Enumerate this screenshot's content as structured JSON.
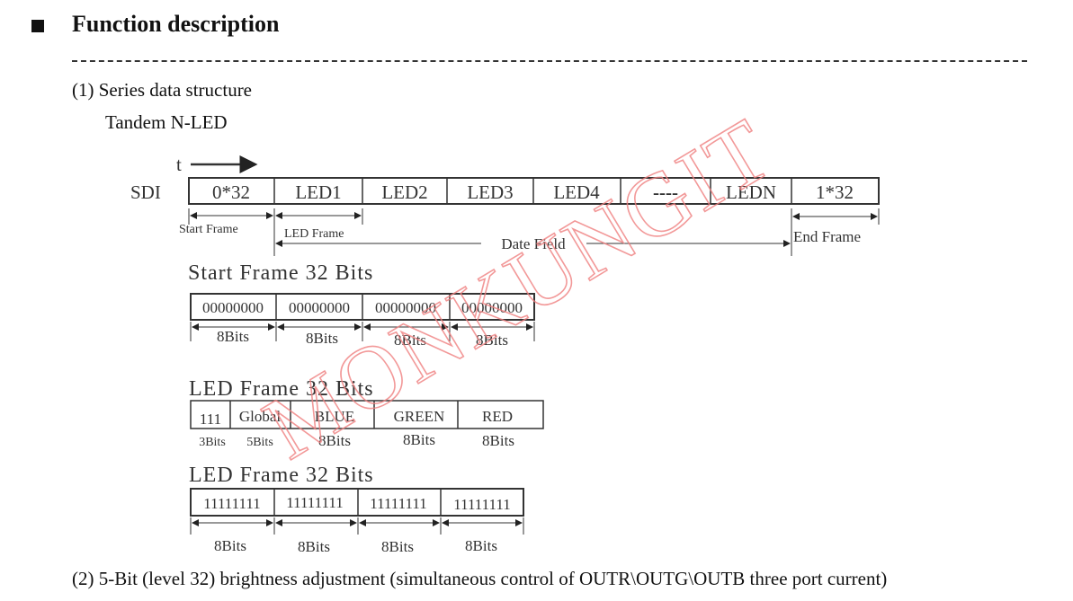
{
  "header": {
    "bullet_icon": "black-square-icon",
    "title": "Function description"
  },
  "section1": {
    "title": "(1) Series data structure",
    "subtitle": "Tandem N-LED"
  },
  "diagram": {
    "time_label": "t",
    "signal_label": "SDI",
    "sdi_cells": [
      "0*32",
      "LED1",
      "LED2",
      "LED3",
      "LED4",
      "----",
      "LEDN",
      "1*32"
    ],
    "start_frame_label": "Start Frame",
    "led_frame_label": "LED Frame",
    "date_field_label": "Date Field",
    "end_frame_label": "End Frame",
    "start_frame": {
      "title": "Start Frame 32 Bits",
      "cells": [
        "00000000",
        "00000000",
        "00000000",
        "00000000"
      ],
      "widths": [
        "8Bits",
        "8Bits",
        "8Bits",
        "8Bits"
      ]
    },
    "led_frame": {
      "title": "LED Frame 32 Bits",
      "cells": [
        "111",
        "Global",
        "BLUE",
        "GREEN",
        "RED"
      ],
      "widths": [
        "3Bits",
        "5Bits",
        "8Bits",
        "8Bits",
        "8Bits"
      ]
    },
    "end_frame": {
      "title": "LED Frame 32 Bits",
      "cells": [
        "11111111",
        "11111111",
        "11111111",
        "11111111"
      ],
      "widths": [
        "8Bits",
        "8Bits",
        "8Bits",
        "8Bits"
      ]
    }
  },
  "watermark": "MONKUNGIT",
  "watermark_color": "#f08080",
  "section2": {
    "title": "(2) 5-Bit (level 32) brightness adjustment (simultaneous control of OUTR\\OUTG\\OUTB three port current)"
  }
}
